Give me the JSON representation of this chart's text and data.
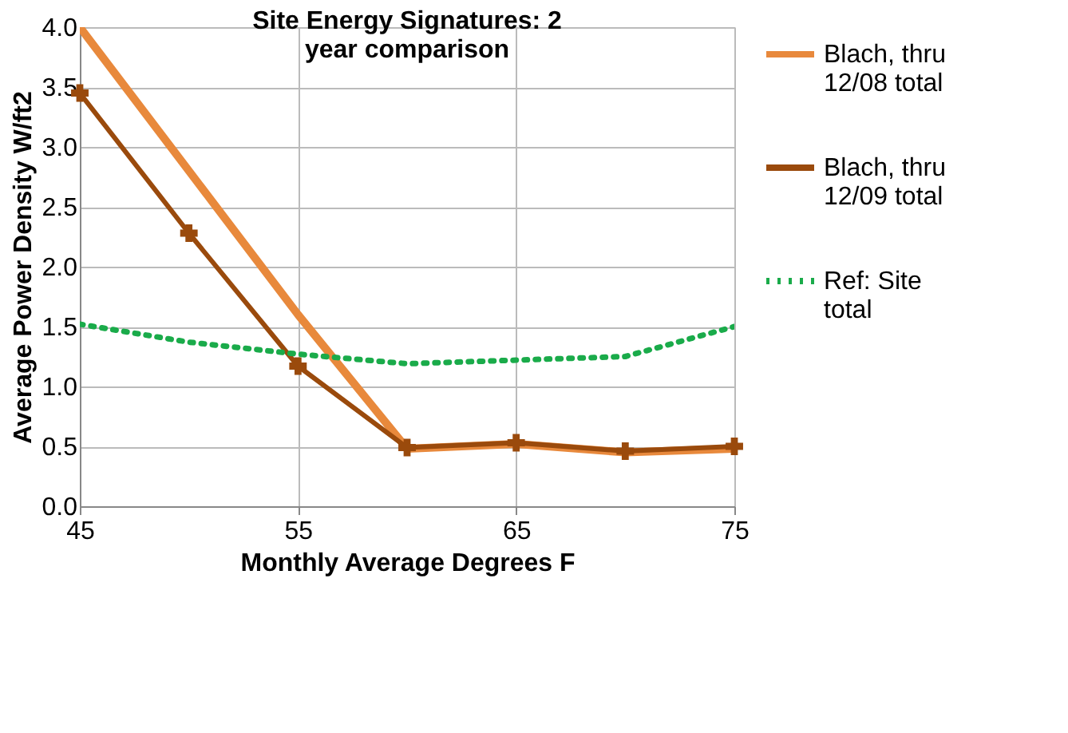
{
  "chart_data": {
    "type": "line",
    "title": "Site Energy Signatures:  2 year comparison",
    "xlabel": "Monthly Average Degrees F",
    "ylabel": "Average Power Density W/ft2",
    "x": [
      45,
      50,
      55,
      60,
      65,
      70,
      75
    ],
    "series": [
      {
        "name": "Blach, thru 12/08 total",
        "color": "#e8893c",
        "values": [
          4.0,
          2.8,
          1.6,
          0.48,
          0.52,
          0.45,
          0.48
        ],
        "line_style": "solid",
        "marker": "none"
      },
      {
        "name": "Blach, thru 12/09 total",
        "color": "#9a4a0c",
        "values": [
          3.45,
          2.28,
          1.17,
          0.49,
          0.53,
          0.46,
          0.5
        ],
        "line_style": "solid",
        "marker": "cross"
      },
      {
        "name": "Ref: Site total",
        "color": "#1aab4a",
        "values": [
          1.52,
          1.37,
          1.27,
          1.19,
          1.22,
          1.25,
          1.5
        ],
        "line_style": "dotted",
        "marker": "none"
      }
    ],
    "xlim": [
      45,
      75
    ],
    "xticks": [
      45,
      55,
      65,
      75
    ],
    "ylim": [
      0,
      4
    ],
    "yticks": [
      {
        "value": 0,
        "label": "0.0"
      },
      0.5,
      {
        "value": 1,
        "label": "1.0"
      },
      1.5,
      {
        "value": 2,
        "label": "2.0"
      },
      2.5,
      {
        "value": 3,
        "label": "3.0"
      },
      3.5,
      {
        "value": 4,
        "label": "4.0"
      }
    ],
    "grid": true,
    "legend": "right"
  }
}
